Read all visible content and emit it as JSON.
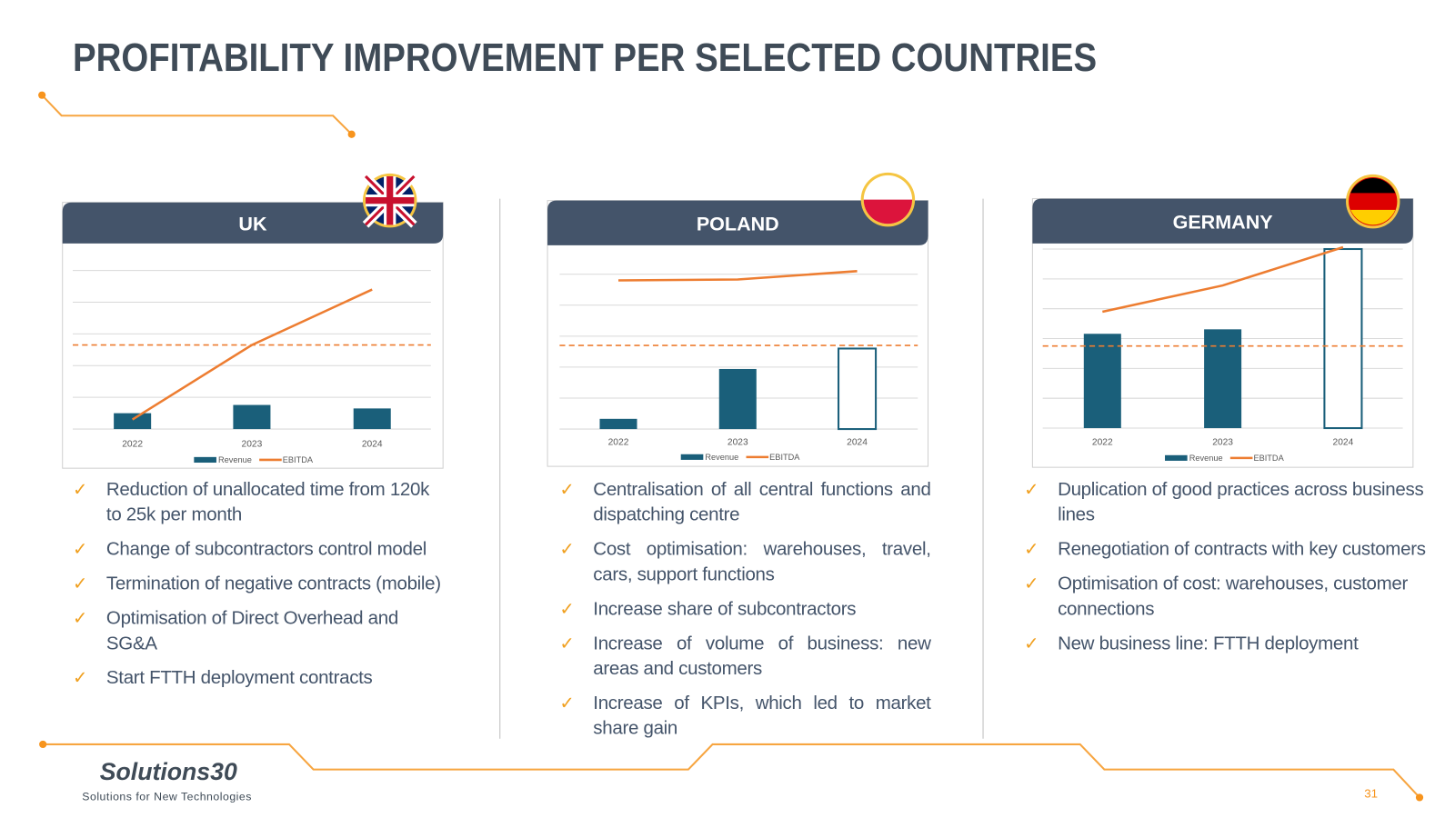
{
  "title": "PROFITABILITY IMPROVEMENT PER SELECTED COUNTRIES",
  "panels": [
    {
      "country": "UK",
      "chart_data": {
        "type": "bar_line",
        "categories": [
          "2022",
          "2023",
          "2024"
        ],
        "series": [
          {
            "name": "Revenue",
            "color": "#1a5f7a",
            "values": [
              0.5,
              0.76,
              0.65
            ],
            "outlined": [
              false,
              false,
              false
            ]
          },
          {
            "name": "EBITDA",
            "color": "#ed7d31",
            "values": [
              0.3,
              2.65,
              4.4
            ]
          }
        ],
        "reference_line": 2.65,
        "ylim": [
          0,
          5
        ],
        "grid": true
      },
      "bullets": [
        "Reduction of unallocated time from 120k to 25k per month",
        "Change of subcontractors control model",
        "Termination of negative contracts (mobile)",
        "Optimisation of Direct Overhead and SG&A",
        "Start FTTH deployment contracts"
      ]
    },
    {
      "country": "POLAND",
      "chart_data": {
        "type": "bar_line",
        "categories": [
          "2022",
          "2023",
          "2024"
        ],
        "series": [
          {
            "name": "Revenue",
            "color": "#1a5f7a",
            "values": [
              0.33,
              1.94,
              2.6
            ],
            "outlined": [
              false,
              false,
              true
            ]
          },
          {
            "name": "EBITDA",
            "color": "#ed7d31",
            "values": [
              4.8,
              4.83,
              5.1
            ]
          }
        ],
        "reference_line": 2.7,
        "ylim": [
          0,
          5
        ],
        "grid": true
      },
      "bullets": [
        "Centralisation of all central functions and dispatching centre",
        "Cost optimisation: warehouses, travel, cars, support functions",
        "Increase share of subcontractors",
        "Increase of volume of business: new areas and customers",
        "Increase of KPIs, which led to market share gain"
      ]
    },
    {
      "country": "GERMANY",
      "chart_data": {
        "type": "bar_line",
        "categories": [
          "2022",
          "2023",
          "2024"
        ],
        "series": [
          {
            "name": "Revenue",
            "color": "#1a5f7a",
            "values": [
              3.16,
              3.31,
              6
            ],
            "outlined": [
              false,
              false,
              true
            ]
          },
          {
            "name": "EBITDA",
            "color": "#ed7d31",
            "values": [
              3.9,
              4.78,
              6.06
            ]
          }
        ],
        "reference_line": 2.75,
        "ylim": [
          0,
          6
        ],
        "grid": true
      },
      "bullets": [
        "Duplication of good practices across business lines",
        "Renegotiation of contracts with key customers",
        "Optimisation of cost: warehouses, customer connections",
        "New business line: FTTH deployment"
      ]
    }
  ],
  "brand": {
    "name": "Solutions30",
    "tagline": "Solutions for New Technologies"
  },
  "page_number": "31"
}
